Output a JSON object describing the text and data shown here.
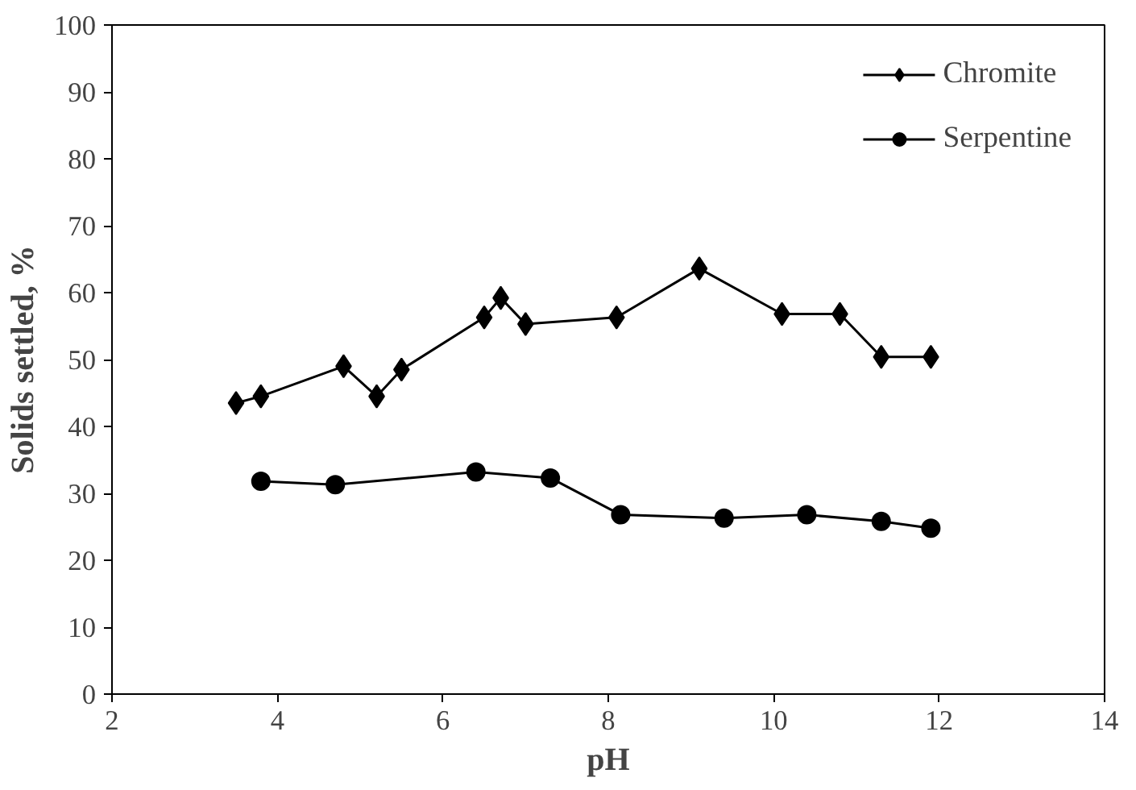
{
  "chart_data": {
    "type": "line",
    "xlabel": "pH",
    "ylabel": "Solids settled, %",
    "xlim": [
      2,
      14
    ],
    "xticks": [
      2,
      4,
      6,
      8,
      10,
      12,
      14
    ],
    "ylim": [
      0,
      100
    ],
    "yticks": [
      0,
      10,
      20,
      30,
      40,
      50,
      60,
      70,
      80,
      90,
      100
    ],
    "grid": false,
    "legend": "top right",
    "line_style": "solid",
    "series": [
      {
        "name": "Chromite",
        "color": "#000000",
        "marker": "diamond",
        "x": [
          3.5,
          3.8,
          4.8,
          5.2,
          5.5,
          6.5,
          6.7,
          7.0,
          8.1,
          9.1,
          10.1,
          10.8,
          11.3,
          11.9
        ],
        "values": [
          43.5,
          44.5,
          49,
          44.5,
          48.5,
          56.3,
          59.2,
          55.3,
          56.3,
          63.6,
          56.8,
          56.8,
          50.4,
          50.4
        ]
      },
      {
        "name": "Serpentine",
        "color": "#000000",
        "marker": "circle",
        "x": [
          3.8,
          4.7,
          6.4,
          7.3,
          8.15,
          9.4,
          10.4,
          11.3,
          11.9
        ],
        "values": [
          31.8,
          31.3,
          33.2,
          32.3,
          26.8,
          26.3,
          26.8,
          25.8,
          24.8
        ]
      }
    ]
  }
}
